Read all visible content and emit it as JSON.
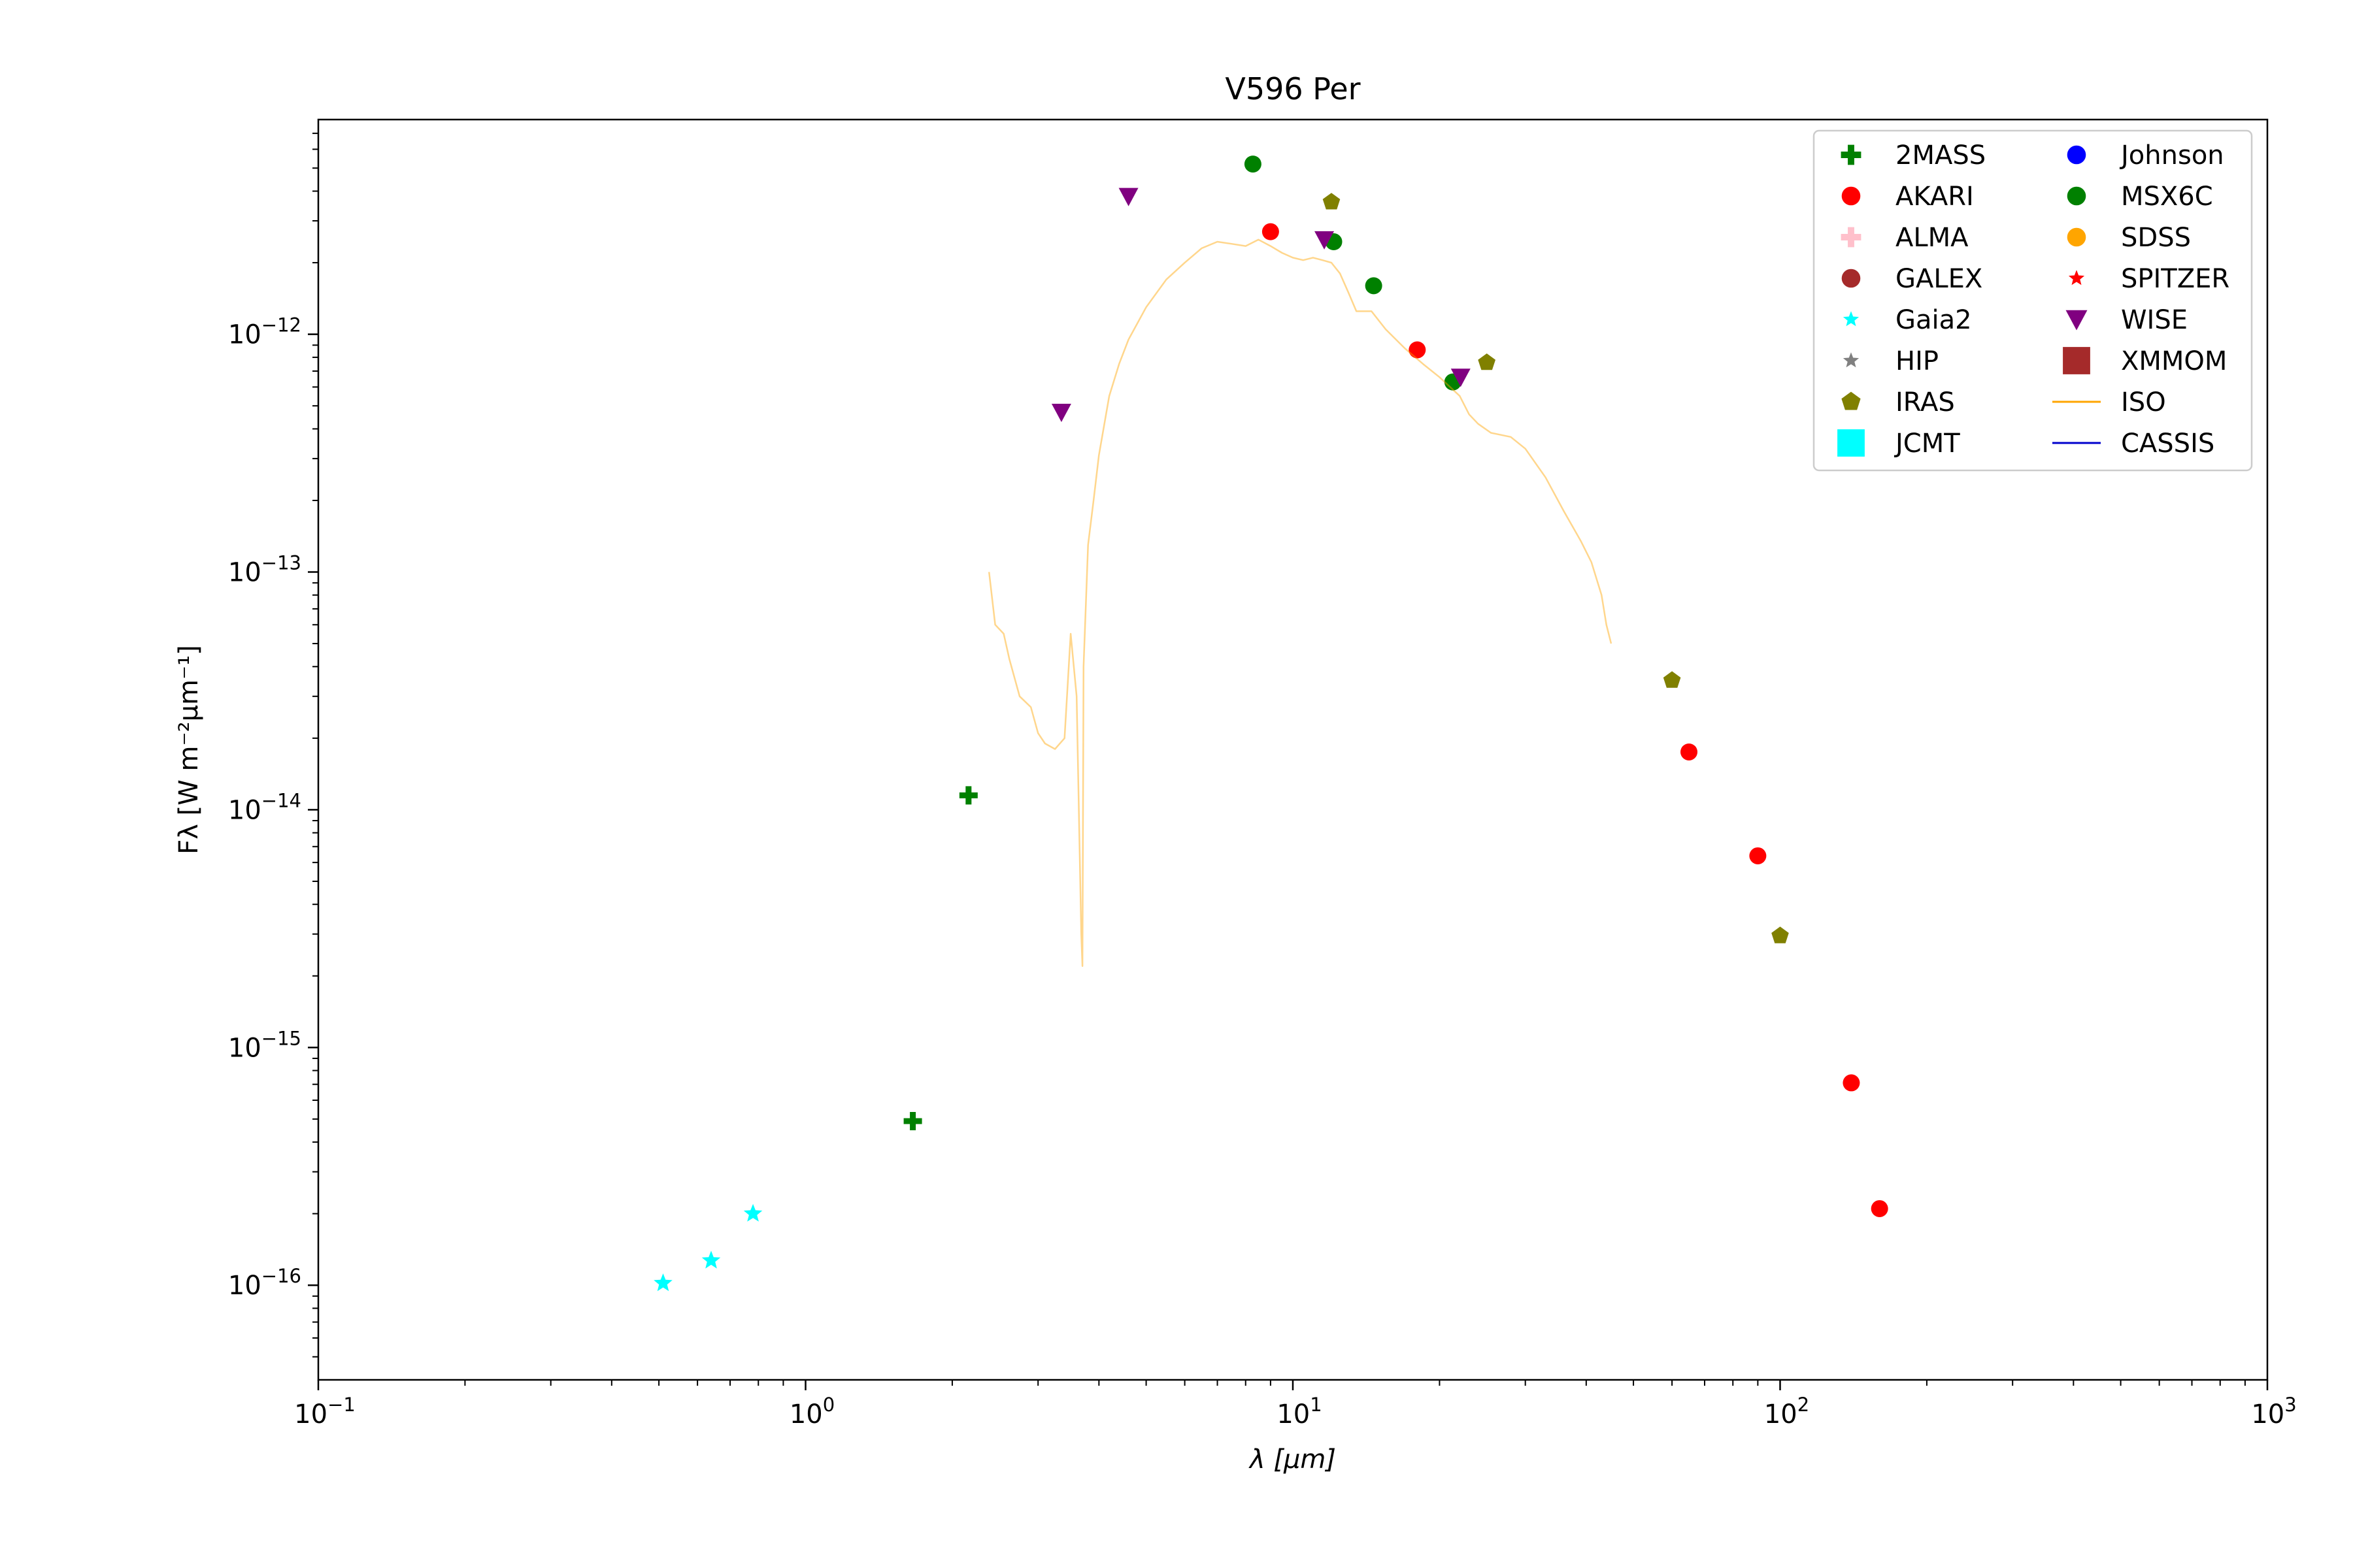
{
  "chart_data": {
    "type": "scatter",
    "title": "V596 Per",
    "xlabel": "λ [μm]",
    "ylabel": "Fλ [W m⁻²μm⁻¹]",
    "xscale": "log",
    "yscale": "log",
    "xlim": [
      0.1,
      1000
    ],
    "ylim": [
      4e-17,
      8e-12
    ],
    "x_ticks": [
      {
        "value": 0.1,
        "base": "10",
        "exp": "−1"
      },
      {
        "value": 1,
        "base": "10",
        "exp": "0"
      },
      {
        "value": 10,
        "base": "10",
        "exp": "1"
      },
      {
        "value": 100,
        "base": "10",
        "exp": "2"
      },
      {
        "value": 1000,
        "base": "10",
        "exp": "3"
      }
    ],
    "y_ticks": [
      {
        "value": 1e-16,
        "base": "10",
        "exp": "−16"
      },
      {
        "value": 1e-15,
        "base": "10",
        "exp": "−15"
      },
      {
        "value": 1e-14,
        "base": "10",
        "exp": "−14"
      },
      {
        "value": 1e-13,
        "base": "10",
        "exp": "−13"
      },
      {
        "value": 1e-12,
        "base": "10",
        "exp": "−12"
      }
    ],
    "legend_position": "top-right",
    "legend_columns": 2,
    "series": [
      {
        "name": "2MASS",
        "marker": "plus",
        "color": "#008000",
        "points": [
          [
            1.66,
            4.9e-16
          ],
          [
            2.16,
            1.15e-14
          ]
        ]
      },
      {
        "name": "AKARI",
        "marker": "circle",
        "color": "#ff0000",
        "points": [
          [
            9,
            2.7e-12
          ],
          [
            18,
            8.6e-13
          ],
          [
            65,
            1.75e-14
          ],
          [
            90,
            6.4e-15
          ],
          [
            140,
            7.1e-16
          ],
          [
            160,
            2.1e-16
          ]
        ]
      },
      {
        "name": "ALMA",
        "marker": "plus",
        "color": "#ffc0cb",
        "points": []
      },
      {
        "name": "GALEX",
        "marker": "circle",
        "color": "#a52a2a",
        "points": []
      },
      {
        "name": "Gaia2",
        "marker": "star",
        "color": "#00ffff",
        "points": [
          [
            0.51,
            1.02e-16
          ],
          [
            0.64,
            1.27e-16
          ],
          [
            0.78,
            2e-16
          ]
        ]
      },
      {
        "name": "HIP",
        "marker": "star",
        "color": "#808080",
        "points": []
      },
      {
        "name": "IRAS",
        "marker": "pentagon",
        "color": "#808000",
        "points": [
          [
            12,
            3.6e-12
          ],
          [
            25,
            7.6e-13
          ],
          [
            60,
            3.5e-14
          ],
          [
            100,
            2.95e-15
          ]
        ]
      },
      {
        "name": "JCMT",
        "marker": "square",
        "color": "#00ffff",
        "points": []
      },
      {
        "name": "Johnson",
        "marker": "circle",
        "color": "#0000ff",
        "points": []
      },
      {
        "name": "MSX6C",
        "marker": "circle",
        "color": "#008000",
        "points": [
          [
            8.28,
            5.2e-12
          ],
          [
            12.13,
            2.45e-12
          ],
          [
            14.65,
            1.6e-12
          ],
          [
            21.3,
            6.3e-13
          ]
        ]
      },
      {
        "name": "SDSS",
        "marker": "circle",
        "color": "#ffa500",
        "points": []
      },
      {
        "name": "SPITZER",
        "marker": "star",
        "color": "#ff0000",
        "points": []
      },
      {
        "name": "WISE",
        "marker": "triangle-down",
        "color": "#800080",
        "points": [
          [
            3.35,
            4.7e-13
          ],
          [
            4.6,
            3.8e-12
          ],
          [
            11.6,
            2.5e-12
          ],
          [
            22.1,
            6.6e-13
          ]
        ]
      },
      {
        "name": "XMMOM",
        "marker": "square",
        "color": "#a52a2a",
        "points": []
      },
      {
        "name": "ISO",
        "marker": "line",
        "color": "#ffa500",
        "points": [
          [
            2.38,
            1e-13
          ],
          [
            2.45,
            6e-14
          ],
          [
            2.55,
            5.5e-14
          ],
          [
            2.62,
            4.3e-14
          ],
          [
            2.75,
            3e-14
          ],
          [
            2.9,
            2.7e-14
          ],
          [
            3.0,
            2.1e-14
          ],
          [
            3.1,
            1.9e-14
          ],
          [
            3.25,
            1.8e-14
          ],
          [
            3.4,
            2e-14
          ],
          [
            3.5,
            5.5e-14
          ],
          [
            3.6,
            3e-14
          ],
          [
            3.68,
            3e-15
          ],
          [
            3.7,
            2.2e-15
          ],
          [
            3.72,
            4e-14
          ],
          [
            3.8,
            1.3e-13
          ],
          [
            3.9,
            2e-13
          ],
          [
            4.0,
            3.1e-13
          ],
          [
            4.2,
            5.5e-13
          ],
          [
            4.4,
            7.5e-13
          ],
          [
            4.6,
            9.5e-13
          ],
          [
            5.0,
            1.3e-12
          ],
          [
            5.5,
            1.7e-12
          ],
          [
            6.0,
            2e-12
          ],
          [
            6.5,
            2.3e-12
          ],
          [
            7.0,
            2.45e-12
          ],
          [
            7.5,
            2.4e-12
          ],
          [
            8.0,
            2.35e-12
          ],
          [
            8.5,
            2.5e-12
          ],
          [
            9.0,
            2.35e-12
          ],
          [
            9.5,
            2.2e-12
          ],
          [
            10.0,
            2.1e-12
          ],
          [
            10.5,
            2.05e-12
          ],
          [
            11.0,
            2.1e-12
          ],
          [
            11.5,
            2.05e-12
          ],
          [
            12.0,
            2e-12
          ],
          [
            12.5,
            1.8e-12
          ],
          [
            13.0,
            1.5e-12
          ],
          [
            13.5,
            1.25e-12
          ],
          [
            14.5,
            1.25e-12
          ],
          [
            15.5,
            1.05e-12
          ],
          [
            17.0,
            8.7e-13
          ],
          [
            18.5,
            7.5e-13
          ],
          [
            20.0,
            6.6e-13
          ],
          [
            22.0,
            5.5e-13
          ],
          [
            23.0,
            4.6e-13
          ],
          [
            24.0,
            4.2e-13
          ],
          [
            25.5,
            3.85e-13
          ],
          [
            28.0,
            3.7e-13
          ],
          [
            30.0,
            3.3e-13
          ],
          [
            33.0,
            2.5e-13
          ],
          [
            36.0,
            1.8e-13
          ],
          [
            39.0,
            1.35e-13
          ],
          [
            41.0,
            1.1e-13
          ],
          [
            43.0,
            8e-14
          ],
          [
            44.0,
            6e-14
          ],
          [
            45.0,
            5e-14
          ]
        ]
      },
      {
        "name": "CASSIS",
        "marker": "line",
        "color": "#0000cc",
        "points": []
      }
    ]
  }
}
